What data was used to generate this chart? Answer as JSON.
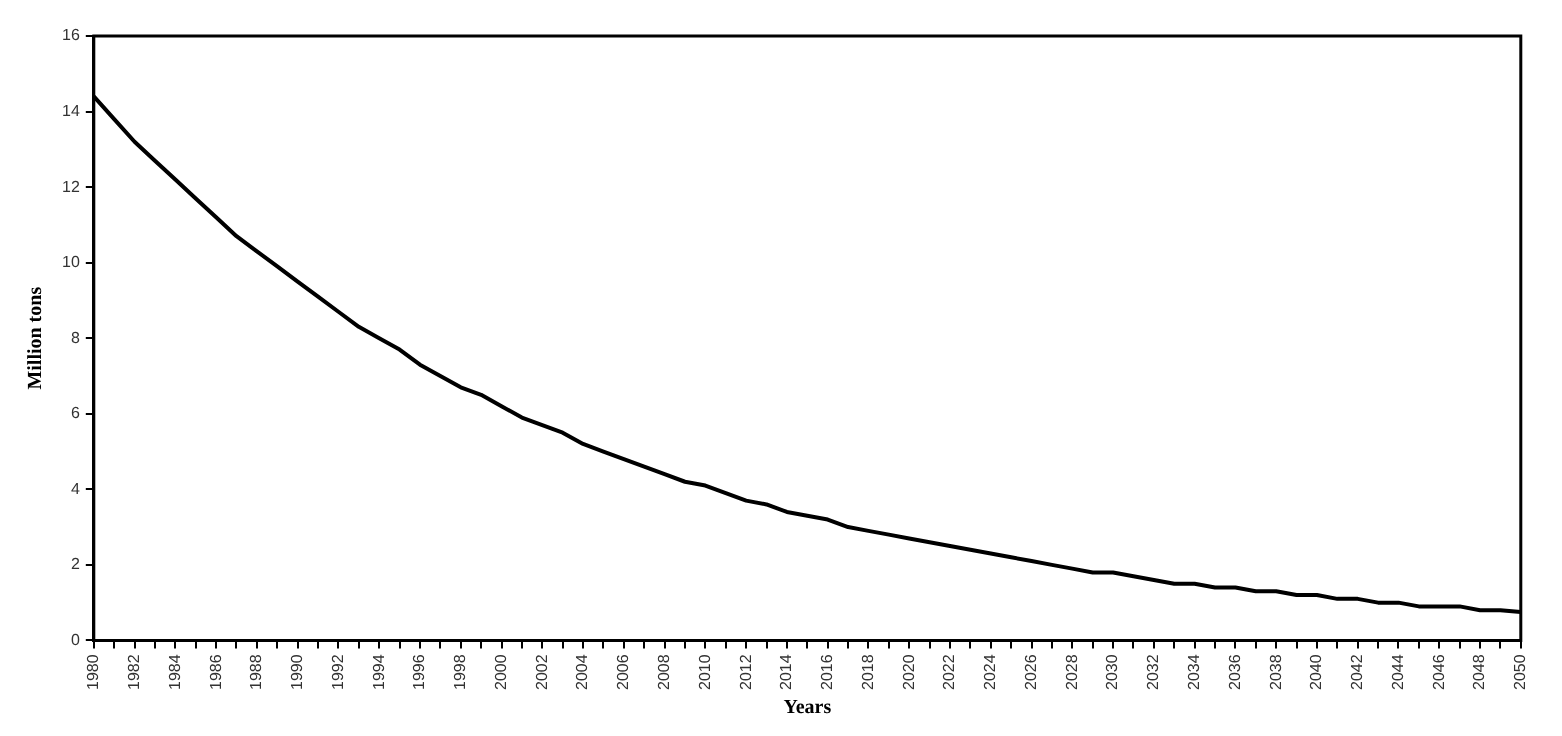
{
  "chart_data": {
    "type": "line",
    "xlabel": "Years",
    "ylabel": "Million tons",
    "categories": [
      "1980",
      null,
      "1982",
      null,
      "1984",
      null,
      "1986",
      null,
      "1988",
      null,
      "1990",
      null,
      "1992",
      null,
      "1994",
      null,
      "1996",
      null,
      "1998",
      null,
      "2000",
      null,
      "2002",
      null,
      "2004",
      null,
      "2006",
      null,
      "2008",
      null,
      "2010",
      null,
      "2012",
      null,
      "2014",
      null,
      "2016",
      null,
      "2018",
      null,
      "2020",
      null,
      "2022",
      null,
      "2024",
      null,
      "2026",
      null,
      "2028",
      null,
      "2030",
      null,
      "2032",
      null,
      "2034",
      null,
      "2036",
      null,
      "2038",
      null,
      "2040",
      null,
      "2042",
      null,
      "2044",
      null,
      "2046",
      null,
      "2048",
      null,
      "2050"
    ],
    "series": [
      {
        "color": "#000000",
        "values": [
          14.4,
          13.8,
          13.2,
          12.7,
          12.2,
          11.7,
          11.2,
          10.7,
          10.3,
          9.9,
          9.5,
          9.1,
          8.7,
          8.3,
          8.0,
          7.7,
          7.3,
          7.0,
          6.7,
          6.5,
          6.2,
          5.9,
          5.7,
          5.5,
          5.2,
          5.0,
          4.8,
          4.6,
          4.4,
          4.2,
          4.1,
          3.9,
          3.7,
          3.6,
          3.4,
          3.3,
          3.2,
          3.0,
          2.9,
          2.8,
          2.7,
          2.6,
          2.5,
          2.4,
          2.3,
          2.2,
          2.1,
          2.0,
          1.9,
          1.8,
          1.8,
          1.7,
          1.6,
          1.5,
          1.5,
          1.4,
          1.4,
          1.3,
          1.3,
          1.2,
          1.2,
          1.1,
          1.1,
          1.0,
          1.0,
          0.9,
          0.9,
          0.9,
          0.8,
          0.8,
          0.75
        ]
      }
    ],
    "ylim": [
      0,
      16
    ],
    "yticks": [
      0,
      2,
      4,
      6,
      8,
      10,
      12,
      14,
      16
    ],
    "grid": false,
    "legend": false,
    "marker": "none",
    "line_style": "solid"
  }
}
